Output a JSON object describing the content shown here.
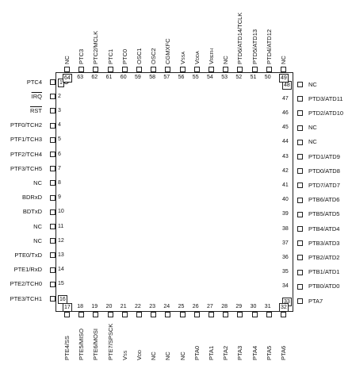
{
  "pins": {
    "left": [
      {
        "num": "1",
        "label": "PTC4",
        "boxed": true
      },
      {
        "num": "2",
        "label": "IRQ",
        "overline": true
      },
      {
        "num": "3",
        "label": "RST",
        "overline": true
      },
      {
        "num": "4",
        "label": "PTF0/TCH2"
      },
      {
        "num": "5",
        "label": "PTF1/TCH3"
      },
      {
        "num": "6",
        "label": "PTF2/TCH4"
      },
      {
        "num": "7",
        "label": "PTF3/TCH5"
      },
      {
        "num": "8",
        "label": "NC"
      },
      {
        "num": "9",
        "label": "BDRxD"
      },
      {
        "num": "10",
        "label": "BDTxD"
      },
      {
        "num": "11",
        "label": "NC"
      },
      {
        "num": "12",
        "label": "NC"
      },
      {
        "num": "13",
        "label": "PTE0/TxD"
      },
      {
        "num": "14",
        "label": "PTE1/RxD"
      },
      {
        "num": "15",
        "label": "PTE2/TCH0"
      },
      {
        "num": "16",
        "label": "PTE3/TCH1",
        "boxed": true
      }
    ],
    "bottom": [
      {
        "num": "17",
        "label": "PTE4/SS",
        "boxed": true
      },
      {
        "num": "18",
        "label": "PTE5/MISO"
      },
      {
        "num": "19",
        "label": "PTE6/MOSI"
      },
      {
        "num": "20",
        "label": "PTE7/SPSCK"
      },
      {
        "num": "21",
        "label": "VSS"
      },
      {
        "num": "22",
        "label": "VDD"
      },
      {
        "num": "23",
        "label": "NC"
      },
      {
        "num": "24",
        "label": "NC"
      },
      {
        "num": "25",
        "label": "NC"
      },
      {
        "num": "26",
        "label": "PTA0"
      },
      {
        "num": "27",
        "label": "PTA1"
      },
      {
        "num": "28",
        "label": "PTA2"
      },
      {
        "num": "29",
        "label": "PTA3"
      },
      {
        "num": "30",
        "label": "PTA4"
      },
      {
        "num": "31",
        "label": "PTA5"
      },
      {
        "num": "32",
        "label": "PTA6",
        "boxed": true
      }
    ],
    "right": [
      {
        "num": "33",
        "label": "PTA7",
        "boxed": true
      },
      {
        "num": "34",
        "label": "PTB0/ATD0"
      },
      {
        "num": "35",
        "label": "PTB1/ATD1"
      },
      {
        "num": "36",
        "label": "PTB2/ATD2"
      },
      {
        "num": "37",
        "label": "PTB3/ATD3"
      },
      {
        "num": "38",
        "label": "PTB4/ATD4"
      },
      {
        "num": "39",
        "label": "PTB5/ATD5"
      },
      {
        "num": "40",
        "label": "PTB6/ATD6"
      },
      {
        "num": "41",
        "label": "PTD7/ATD7"
      },
      {
        "num": "42",
        "label": "PTD0/ATD8"
      },
      {
        "num": "43",
        "label": "PTD1/ATD9"
      },
      {
        "num": "44",
        "label": "NC"
      },
      {
        "num": "45",
        "label": "NC"
      },
      {
        "num": "46",
        "label": "PTD2/ATD10"
      },
      {
        "num": "47",
        "label": "PTD3/ATD11"
      },
      {
        "num": "48",
        "label": "NC",
        "boxed": true
      }
    ],
    "top": [
      {
        "num": "64",
        "label": "NC",
        "boxed": true
      },
      {
        "num": "63",
        "label": "PTC3"
      },
      {
        "num": "62",
        "label": "PTC2/MCLK"
      },
      {
        "num": "61",
        "label": "PTC1"
      },
      {
        "num": "60",
        "label": "PTC0"
      },
      {
        "num": "59",
        "label": "OSC1"
      },
      {
        "num": "58",
        "label": "OSC2"
      },
      {
        "num": "57",
        "label": "CGMXFC"
      },
      {
        "num": "56",
        "label": "VSSA"
      },
      {
        "num": "55",
        "label": "VDDA"
      },
      {
        "num": "54",
        "label": "VREFH"
      },
      {
        "num": "53",
        "label": "NC"
      },
      {
        "num": "52",
        "label": "PTD6/ATD14/TCLK"
      },
      {
        "num": "51",
        "label": "PTD5/ATD13"
      },
      {
        "num": "50",
        "label": "PTD4/ATD12"
      },
      {
        "num": "49",
        "label": "NC",
        "boxed": true
      }
    ]
  }
}
